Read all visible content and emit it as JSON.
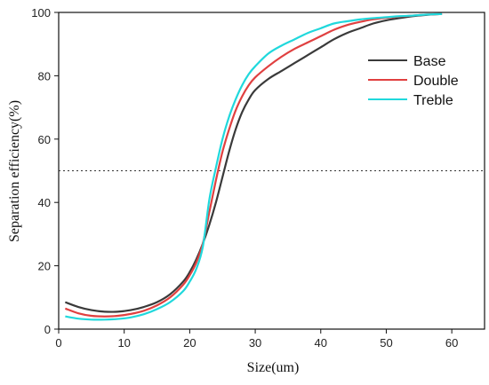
{
  "chart_data": {
    "type": "line",
    "xlabel": "Size(um)",
    "ylabel": "Separation efficiency(%)",
    "xlim": [
      0,
      65
    ],
    "ylim": [
      0,
      100
    ],
    "xticks": [
      0,
      10,
      20,
      30,
      40,
      50,
      60
    ],
    "yticks": [
      0,
      20,
      40,
      60,
      80,
      100
    ],
    "reference_line": {
      "y": 50,
      "style": "dotted"
    },
    "legend": "top-right",
    "grid": false,
    "series": [
      {
        "name": "Base",
        "color": "#3a3a3a",
        "x": [
          1,
          3,
          5,
          7,
          9,
          11,
          13,
          15,
          17,
          19,
          20,
          21,
          22,
          23,
          24,
          25,
          26,
          27,
          28,
          29,
          30,
          32,
          34,
          36,
          38,
          40,
          42,
          44,
          46,
          48,
          50,
          52,
          54,
          56,
          58.5
        ],
        "y": [
          8.5,
          7,
          6,
          5.5,
          5.5,
          6,
          7,
          8.5,
          11,
          15,
          18,
          22,
          27,
          33,
          40,
          48,
          56,
          63,
          68.5,
          72.5,
          75.5,
          79,
          81.5,
          84,
          86.5,
          89,
          91.5,
          93.5,
          95,
          96.5,
          97.5,
          98.2,
          98.8,
          99.2,
          99.5
        ]
      },
      {
        "name": "Double",
        "color": "#e04040",
        "x": [
          1,
          3,
          5,
          7,
          9,
          11,
          13,
          15,
          17,
          19,
          20,
          21,
          22,
          23,
          24,
          25,
          26,
          27,
          28,
          29,
          30,
          32,
          34,
          36,
          38,
          40,
          42,
          44,
          46,
          48,
          50,
          52,
          54,
          56,
          58.5
        ],
        "y": [
          6.5,
          5,
          4.2,
          4,
          4.2,
          4.8,
          5.8,
          7.5,
          10,
          14,
          17,
          21,
          27,
          37,
          47,
          56,
          63,
          69,
          73.5,
          77,
          79.5,
          83,
          86,
          88.5,
          90.5,
          92.5,
          94.5,
          96,
          97,
          97.8,
          98.3,
          98.7,
          99,
          99.3,
          99.5
        ]
      },
      {
        "name": "Treble",
        "color": "#20d8dc",
        "x": [
          1,
          3,
          5,
          7,
          9,
          11,
          13,
          15,
          17,
          19,
          20,
          21,
          22,
          23,
          24,
          25,
          26,
          27,
          28,
          29,
          30,
          32,
          34,
          36,
          38,
          40,
          42,
          44,
          46,
          48,
          50,
          52,
          54,
          56,
          58.5
        ],
        "y": [
          4,
          3.3,
          3,
          3,
          3.2,
          3.7,
          4.7,
          6.3,
          8.5,
          12,
          15,
          19,
          26,
          41,
          51,
          60,
          67,
          72.5,
          77,
          80.5,
          83,
          87,
          89.5,
          91.5,
          93.5,
          95,
          96.5,
          97.2,
          97.8,
          98.2,
          98.5,
          98.8,
          99,
          99.3,
          99.5
        ]
      }
    ]
  }
}
